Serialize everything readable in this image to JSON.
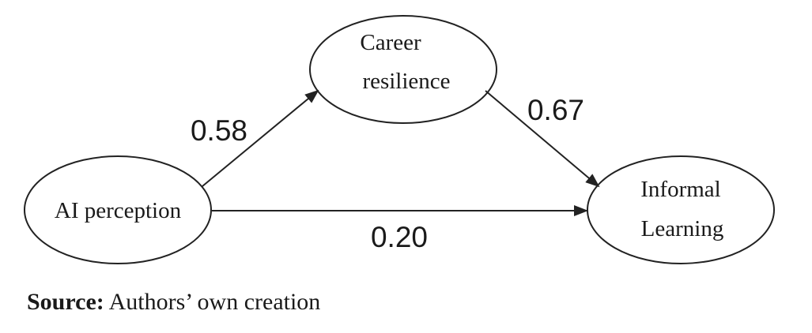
{
  "nodes": {
    "ai_perception": {
      "lines": [
        "AI perception"
      ]
    },
    "career_resilience": {
      "lines": [
        "Career",
        "resilience"
      ]
    },
    "informal_learning": {
      "lines": [
        "Informal",
        "Learning"
      ]
    }
  },
  "paths": {
    "ai_to_career": "0.58",
    "career_to_informal": "0.67",
    "ai_to_informal": "0.20"
  },
  "source": {
    "label": "Source:",
    "text": " Authors’ own creation"
  }
}
